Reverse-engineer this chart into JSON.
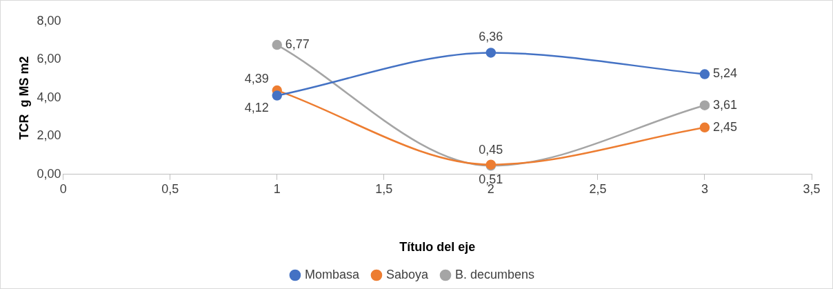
{
  "chart_data": {
    "type": "line",
    "xlabel": "Título del eje",
    "ylabel": "TCR  g MS m2",
    "x": [
      1,
      2,
      3
    ],
    "series": [
      {
        "name": "Mombasa",
        "color": "#4472c4",
        "values": [
          4.12,
          6.36,
          5.24
        ],
        "value_labels": [
          "4,12",
          "6,36",
          "5,24"
        ]
      },
      {
        "name": "Saboya",
        "color": "#ed7d31",
        "values": [
          4.39,
          0.51,
          2.45
        ],
        "value_labels": [
          "4,39",
          "0,51",
          "2,45"
        ]
      },
      {
        "name": "B. decumbens",
        "color": "#a5a5a5",
        "values": [
          6.77,
          0.45,
          3.61
        ],
        "value_labels": [
          "6,77",
          "0,45",
          "3,61"
        ]
      }
    ],
    "xlim": [
      0,
      3.5
    ],
    "xticks": [
      0,
      {
        "value": 0.5,
        "label": "0,5"
      },
      1,
      {
        "value": 1.5,
        "label": "1,5"
      },
      2,
      {
        "value": 2.5,
        "label": "2,5"
      },
      3,
      {
        "value": 3.5,
        "label": "3,5"
      }
    ],
    "ylim": [
      0,
      8
    ],
    "yticks": [
      {
        "value": 0,
        "label": "0,00"
      },
      {
        "value": 2,
        "label": "2,00"
      },
      {
        "value": 4,
        "label": "4,00"
      },
      {
        "value": 6,
        "label": "6,00"
      },
      {
        "value": 8,
        "label": "8,00"
      }
    ],
    "grid": false,
    "legend": "bottom",
    "marker": "circle",
    "line_style": "solid"
  }
}
